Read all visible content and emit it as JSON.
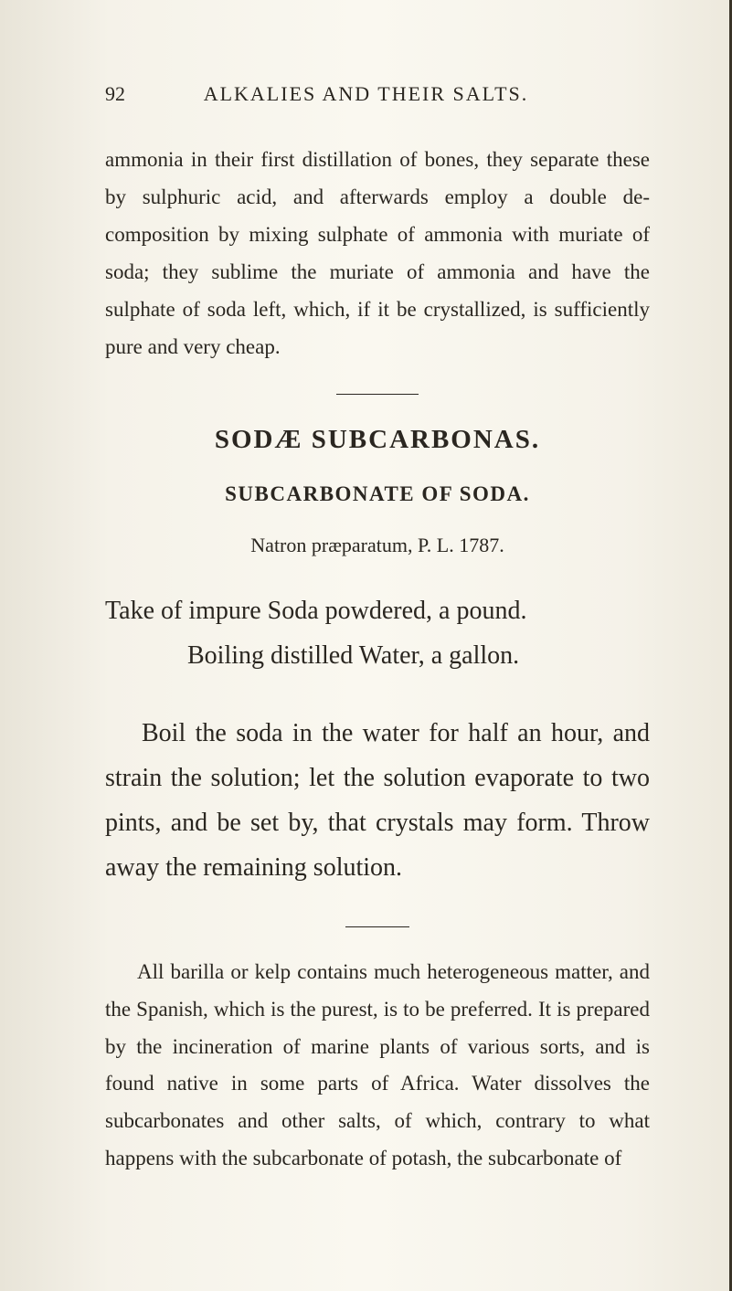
{
  "page": {
    "number": "92",
    "running_header": "ALKALIES AND THEIR SALTS.",
    "background_color": "#faf8f0",
    "text_color": "#2a2620",
    "body_fontsize": 23,
    "large_fontsize": 28,
    "heading_fontsize": 29
  },
  "paragraphs": {
    "intro": "ammonia in their first distillation of bones, they separate these by sulphuric acid, and afterwards employ a double de­composition by mixing sulphate of ammonia with muriate of soda; they sublime the muriate of ammonia and have the sulphate of soda left, which, if it be crystallized, is sufficiently pure and very cheap."
  },
  "section": {
    "heading": "SODÆ SUBCARBONAS.",
    "subheading": "SUBCARBONATE OF SODA.",
    "latin_reference": "Natron præparatum, P. L. 1787."
  },
  "recipe": {
    "line1": "Take of impure Soda powdered, a pound.",
    "line2": "Boiling distilled Water, a gallon."
  },
  "instructions": "Boil the soda in the water for half an hour, and strain the solution; let the solution eva­porate to two pints, and be set by, that cry­stals may form. Throw away the remaining solution.",
  "notes": "All barilla or kelp contains much heterogeneous matter, and the Spanish, which is the purest, is to be preferred. It is prepared by the incineration of marine plants of various sorts, and is found native in some parts of Africa. Water dissolves the subcarbonates and other salts, of which, contrary to what happens with the subcarbonate of potash, the subcarbonate of"
}
